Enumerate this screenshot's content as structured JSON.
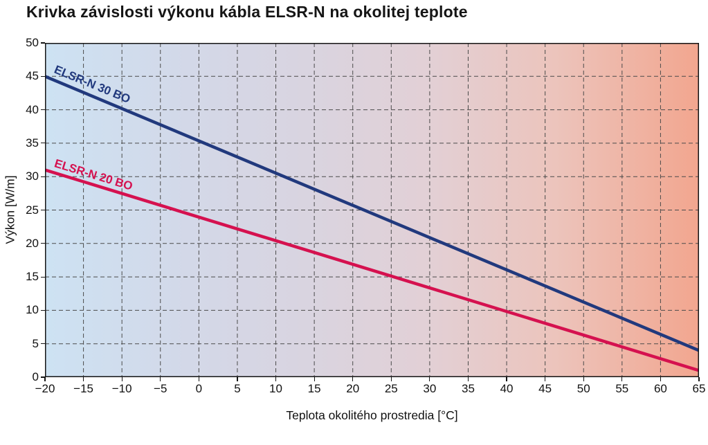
{
  "chart_data": {
    "type": "line",
    "title": "Krivka závislosti výkonu kábla ELSR-N na okolitej teplote",
    "xlabel": "Teplota okolitého prostredia [°C]",
    "ylabel": "Výkon [W/m]",
    "xlim": [
      -20,
      65
    ],
    "ylim": [
      0,
      50
    ],
    "x_ticks": [
      -20,
      -15,
      -10,
      -5,
      0,
      5,
      10,
      15,
      20,
      25,
      30,
      35,
      40,
      45,
      50,
      55,
      60,
      65
    ],
    "y_ticks": [
      0,
      5,
      10,
      15,
      20,
      25,
      30,
      35,
      40,
      45,
      50
    ],
    "grid": "dashed-both-axes",
    "background_gradient": [
      "#cde2f3",
      "#d9d4e0",
      "#e2d0d6",
      "#ecc4bc",
      "#f2a68f"
    ],
    "series": [
      {
        "name": "ELSR-N 30 BO",
        "color": "#21397d",
        "x": [
          -20,
          65
        ],
        "y": [
          45,
          4
        ]
      },
      {
        "name": "ELSR-N 20 BO",
        "color": "#d5114f",
        "x": [
          -20,
          65
        ],
        "y": [
          31,
          1
        ]
      }
    ]
  }
}
